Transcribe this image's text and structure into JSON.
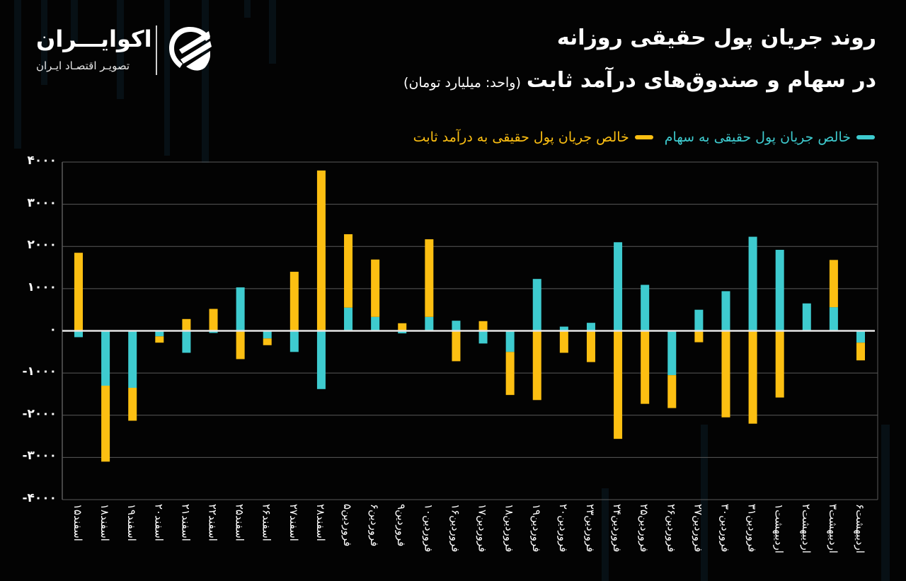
{
  "header": {
    "title_line1": "روند جریان پول حقیقی روزانه",
    "title_line2": "در سهام و صندوق‌های درآمد ثابت",
    "unit": "(واحد: میلیارد تومان)"
  },
  "logo": {
    "name": "اکوایـــران",
    "tagline": "تصویـر اقتصـاد ایـران"
  },
  "legend": {
    "items": [
      {
        "label": "خالص جریان پول حقیقی به سهام",
        "color": "#3ecbcf"
      },
      {
        "label": "خالص جریان پول حقیقی به درآمد ثابت",
        "color": "#fcbf12"
      }
    ]
  },
  "colors": {
    "background": "#030303",
    "stocks": "#3ecbcf",
    "fixed_income": "#fcbf12",
    "grid": "#5a5a5a",
    "zero_line": "#e6e6e6"
  },
  "chart_data": {
    "type": "bar",
    "stacked": true,
    "title": "روند جریان پول حقیقی روزانه در سهام و صندوق‌های درآمد ثابت",
    "subtitle": "(واحد: میلیارد تومان)",
    "xlabel": "",
    "ylabel": "",
    "ylim": [
      -4000,
      4000
    ],
    "yticks": [
      4000,
      3000,
      2000,
      1000,
      0,
      -1000,
      -2000,
      -3000,
      -4000
    ],
    "ytick_labels": [
      "۴۰۰۰",
      "۳۰۰۰",
      "۲۰۰۰",
      "۱۰۰۰",
      "۰",
      "-۱۰۰۰",
      "-۲۰۰۰",
      "-۳۰۰۰",
      "-۴۰۰۰"
    ],
    "grid": true,
    "legend_position": "top-right",
    "categories": [
      "اسفند۱۵",
      "اسفند۱۸",
      "اسفند۱۹",
      "اسفند۲۰",
      "اسفند۲۱",
      "اسفند۲۲",
      "اسفند۲۵",
      "اسفند۲۶",
      "اسفند۲۷",
      "اسفند۲۸",
      "فروردین۵",
      "فروردین۶",
      "فروردین۹",
      "فروردین۱۰",
      "فروردین۱۶",
      "فروردین۱۷",
      "فروردین۱۸",
      "فروردین۱۹",
      "فروردین۲۰",
      "فروردین۲۳",
      "فروردین۲۴",
      "فروردین۲۵",
      "فروردین۲۶",
      "فروردین۲۷",
      "فروردین۳۰",
      "فروردین۳۱",
      "اردیبهشت۱",
      "اردیبهشت۲",
      "اردیبهشت۳",
      "اردیبهشت۶"
    ],
    "series": [
      {
        "name": "خالص جریان پول حقیقی به سهام",
        "color": "#3ecbcf",
        "values": [
          -150,
          -1300,
          -1350,
          -130,
          -520,
          -50,
          1030,
          -180,
          -500,
          -1380,
          550,
          330,
          -60,
          330,
          240,
          -300,
          -500,
          1230,
          100,
          190,
          2100,
          1090,
          -1050,
          500,
          940,
          2230,
          1920,
          650,
          560,
          -280
        ]
      },
      {
        "name": "خالص جریان پول حقیقی به درآمد ثابت",
        "color": "#fcbf12",
        "values": [
          1850,
          -1800,
          -780,
          -150,
          280,
          520,
          -670,
          -160,
          1400,
          3800,
          1740,
          1360,
          180,
          1840,
          -720,
          230,
          -1020,
          -1640,
          -520,
          -740,
          -2560,
          -1730,
          -780,
          -270,
          -2050,
          -2200,
          -1580,
          0,
          1120,
          -420
        ]
      }
    ]
  }
}
